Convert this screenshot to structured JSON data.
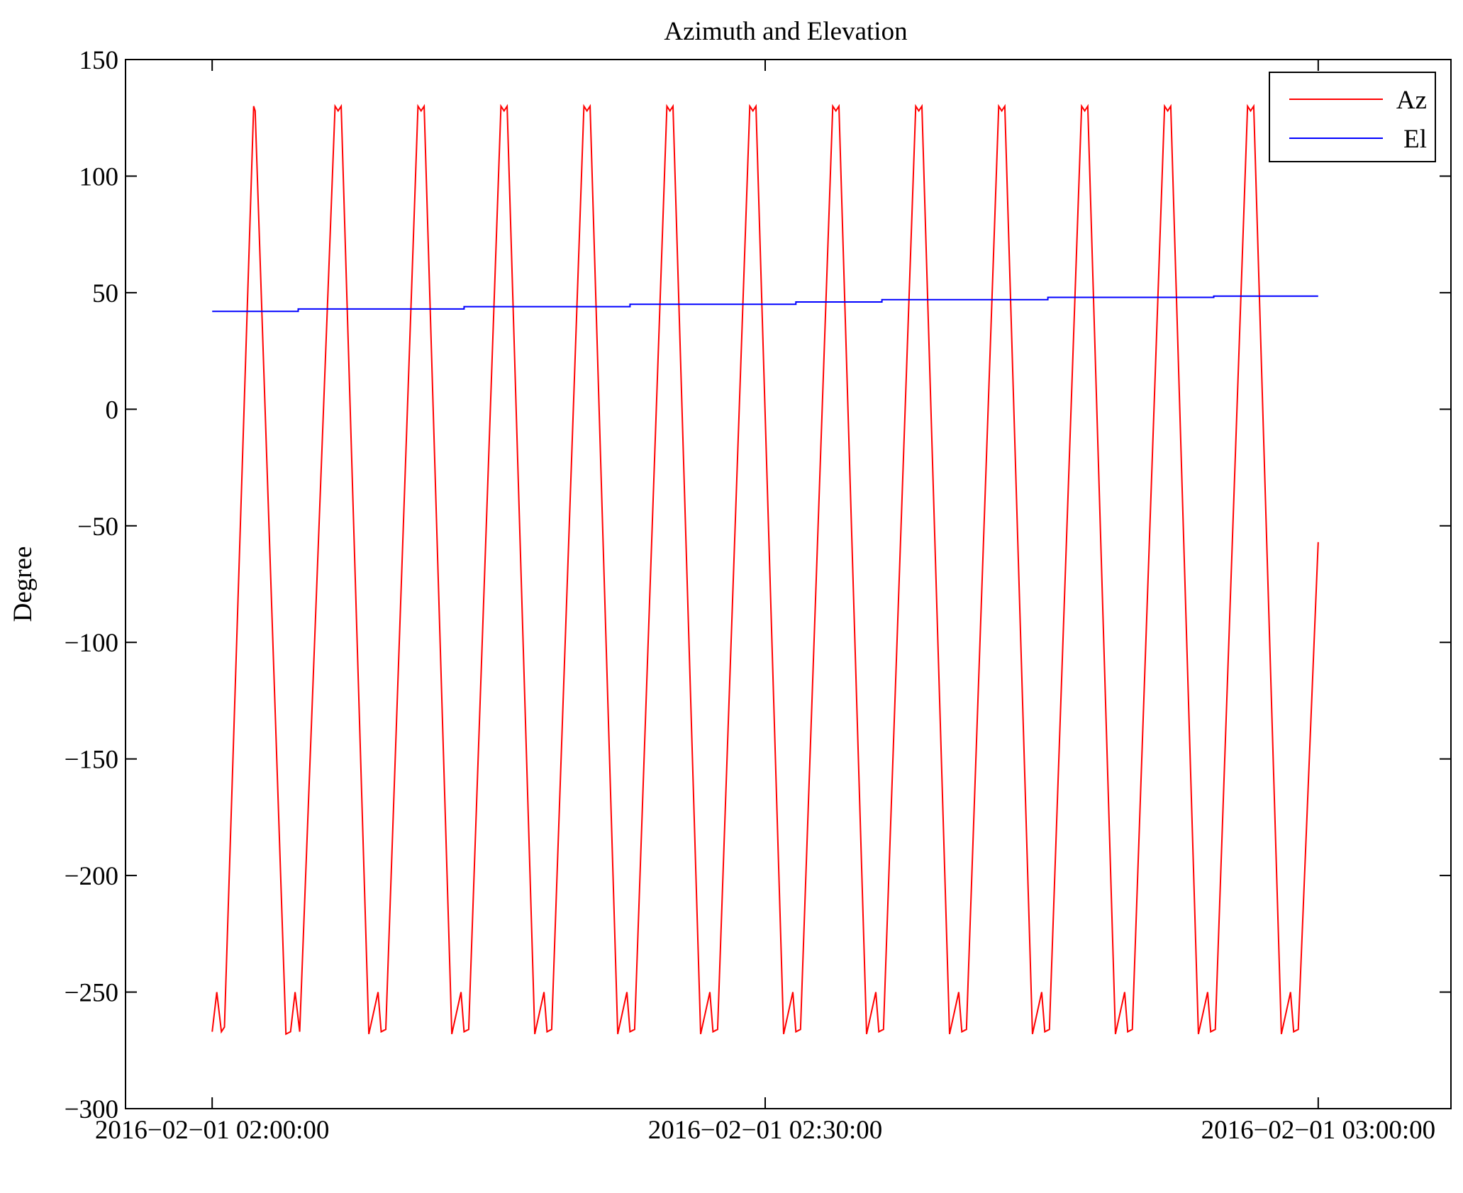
{
  "chart_data": {
    "type": "line",
    "title": "Azimuth and Elevation",
    "xlabel": "",
    "ylabel": "Degree",
    "ylim": [
      -300,
      150
    ],
    "yticks": [
      150,
      100,
      50,
      0,
      -50,
      -100,
      -150,
      -200,
      -250,
      -300
    ],
    "ytick_labels": [
      "150",
      "100",
      "50",
      "0",
      "−50",
      "−100",
      "−150",
      "−200",
      "−250",
      "−300"
    ],
    "xlim": [
      "2016-02-01 01:55:18",
      "2016-02-01 03:07:12"
    ],
    "xticks": [
      "2016-02-01 02:00:00",
      "2016-02-01 02:30:00",
      "2016-02-01 03:00:00"
    ],
    "xtick_labels": [
      "2016−02−01 02:00:00",
      "2016−02−01 02:30:00",
      "2016−02−01 03:00:00"
    ],
    "grid": false,
    "legend": "top-right",
    "series": [
      {
        "name": "Az",
        "color": "#ff0000",
        "x": [
          "2016-02-01 02:00:00",
          "2016-02-01 02:00:15",
          "2016-02-01 02:00:30",
          "2016-02-01 02:00:40",
          "2016-02-01 02:02:15",
          "2016-02-01 02:02:20",
          "2016-02-01 02:04:00",
          "2016-02-01 02:04:15",
          "2016-02-01 02:04:30",
          "2016-02-01 02:04:45",
          "2016-02-01 02:06:40",
          "2016-02-01 02:06:50",
          "2016-02-01 02:07:00",
          "2016-02-01 02:08:30",
          "2016-02-01 02:09:00",
          "2016-02-01 02:09:10",
          "2016-02-01 02:09:25",
          "2016-02-01 02:11:10",
          "2016-02-01 02:11:20",
          "2016-02-01 02:11:30",
          "2016-02-01 02:13:00",
          "2016-02-01 02:13:30",
          "2016-02-01 02:13:40",
          "2016-02-01 02:13:55",
          "2016-02-01 02:15:40",
          "2016-02-01 02:15:50",
          "2016-02-01 02:16:00",
          "2016-02-01 02:17:30",
          "2016-02-01 02:18:00",
          "2016-02-01 02:18:10",
          "2016-02-01 02:18:25",
          "2016-02-01 02:20:10",
          "2016-02-01 02:20:20",
          "2016-02-01 02:20:30",
          "2016-02-01 02:22:00",
          "2016-02-01 02:22:30",
          "2016-02-01 02:22:40",
          "2016-02-01 02:22:55",
          "2016-02-01 02:24:40",
          "2016-02-01 02:24:50",
          "2016-02-01 02:25:00",
          "2016-02-01 02:26:30",
          "2016-02-01 02:27:00",
          "2016-02-01 02:27:10",
          "2016-02-01 02:27:25",
          "2016-02-01 02:29:10",
          "2016-02-01 02:29:20",
          "2016-02-01 02:29:30",
          "2016-02-01 02:31:00",
          "2016-02-01 02:31:30",
          "2016-02-01 02:31:40",
          "2016-02-01 02:31:55",
          "2016-02-01 02:33:40",
          "2016-02-01 02:33:50",
          "2016-02-01 02:34:00",
          "2016-02-01 02:35:30",
          "2016-02-01 02:36:00",
          "2016-02-01 02:36:10",
          "2016-02-01 02:36:25",
          "2016-02-01 02:38:10",
          "2016-02-01 02:38:20",
          "2016-02-01 02:38:30",
          "2016-02-01 02:40:00",
          "2016-02-01 02:40:30",
          "2016-02-01 02:40:40",
          "2016-02-01 02:40:55",
          "2016-02-01 02:42:40",
          "2016-02-01 02:42:50",
          "2016-02-01 02:43:00",
          "2016-02-01 02:44:30",
          "2016-02-01 02:45:00",
          "2016-02-01 02:45:10",
          "2016-02-01 02:45:25",
          "2016-02-01 02:47:10",
          "2016-02-01 02:47:20",
          "2016-02-01 02:47:30",
          "2016-02-01 02:49:00",
          "2016-02-01 02:49:30",
          "2016-02-01 02:49:40",
          "2016-02-01 02:49:55",
          "2016-02-01 02:51:40",
          "2016-02-01 02:51:50",
          "2016-02-01 02:52:00",
          "2016-02-01 02:53:30",
          "2016-02-01 02:54:00",
          "2016-02-01 02:54:10",
          "2016-02-01 02:54:25",
          "2016-02-01 02:56:10",
          "2016-02-01 02:56:20",
          "2016-02-01 02:56:30",
          "2016-02-01 02:58:00",
          "2016-02-01 02:58:30",
          "2016-02-01 02:58:40",
          "2016-02-01 02:58:55",
          "2016-02-01 03:00:00"
        ],
        "y": [
          -267,
          -250,
          -267,
          -265,
          130,
          128,
          -268,
          -267,
          -250,
          -267,
          130,
          128,
          130,
          -268,
          -250,
          -267,
          -266,
          130,
          128,
          130,
          -268,
          -250,
          -267,
          -266,
          130,
          128,
          130,
          -268,
          -250,
          -267,
          -266,
          130,
          128,
          130,
          -268,
          -250,
          -267,
          -266,
          130,
          128,
          130,
          -268,
          -250,
          -267,
          -266,
          130,
          128,
          130,
          -268,
          -250,
          -267,
          -266,
          130,
          128,
          130,
          -268,
          -250,
          -267,
          -266,
          130,
          128,
          130,
          -268,
          -250,
          -267,
          -266,
          130,
          128,
          130,
          -268,
          -250,
          -267,
          -266,
          130,
          128,
          130,
          -268,
          -250,
          -267,
          -266,
          130,
          128,
          130,
          -268,
          -250,
          -267,
          -266,
          130,
          128,
          130,
          -268,
          -250,
          -267,
          -266,
          -57
        ]
      },
      {
        "name": "El",
        "color": "#0000ff",
        "x": [
          "2016-02-01 02:00:00",
          "2016-02-01 02:04:40",
          "2016-02-01 02:04:40",
          "2016-02-01 02:13:40",
          "2016-02-01 02:13:40",
          "2016-02-01 02:22:40",
          "2016-02-01 02:22:40",
          "2016-02-01 02:31:40",
          "2016-02-01 02:31:40",
          "2016-02-01 02:36:20",
          "2016-02-01 02:36:20",
          "2016-02-01 02:45:20",
          "2016-02-01 02:45:20",
          "2016-02-01 02:54:20",
          "2016-02-01 02:54:20",
          "2016-02-01 03:00:00"
        ],
        "y": [
          42,
          42,
          43,
          43,
          44,
          44,
          45,
          45,
          46,
          46,
          47,
          47,
          48,
          48,
          48.5,
          48.5
        ]
      }
    ]
  }
}
